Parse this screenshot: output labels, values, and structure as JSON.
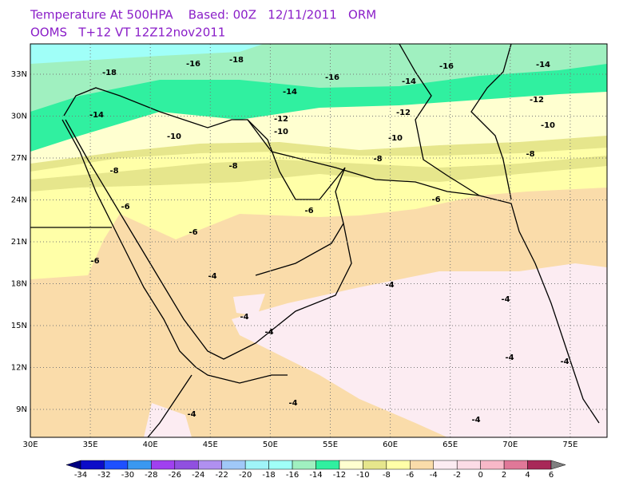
{
  "header": {
    "line1": "Temperature At 500HPA    Based: 00Z   12/11/2011   ORM",
    "line2": "OOMS   T+12 VT 12Z12nov2011"
  },
  "map": {
    "lon_labels": [
      "30E",
      "35E",
      "40E",
      "45E",
      "50E",
      "55E",
      "60E",
      "65E",
      "70E",
      "75E"
    ],
    "lat_labels": [
      "33N",
      "30N",
      "27N",
      "24N",
      "21N",
      "18N",
      "15N",
      "12N",
      "9N"
    ],
    "contour_labels": [
      "-18",
      "-16",
      "-18",
      "-16",
      "-16",
      "-14",
      "-14",
      "-14",
      "-14",
      "-12",
      "-12",
      "-12",
      "-10",
      "-10",
      "-10",
      "-10",
      "-8",
      "-8",
      "-8",
      "-8",
      "-6",
      "-6",
      "-6",
      "-6",
      "-6",
      "-4",
      "-4",
      "-4",
      "-4",
      "-4",
      "-4",
      "-4",
      "-4",
      "-4",
      "-4"
    ]
  },
  "colorbar": {
    "labels": [
      "-34",
      "-32",
      "-30",
      "-28",
      "-26",
      "-24",
      "-22",
      "-20",
      "-18",
      "-16",
      "-14",
      "-12",
      "-10",
      "-8",
      "-6",
      "-4",
      "-2",
      "0",
      "2",
      "4",
      "6"
    ],
    "colors": [
      "#0c0cc8",
      "#1e50ff",
      "#3a98f0",
      "#a040f0",
      "#9050e0",
      "#b090f0",
      "#a0c8f8",
      "#a0f4f8",
      "#a0fff8",
      "#a0f0c0",
      "#30f0a0",
      "#ffffd0",
      "#e6e68c",
      "#ffffa8",
      "#fadcaa",
      "#fcecf2",
      "#fcdce6",
      "#f8b8c8",
      "#e07898",
      "#a82858"
    ],
    "low_color": "#000080",
    "high_color": "#808080"
  }
}
